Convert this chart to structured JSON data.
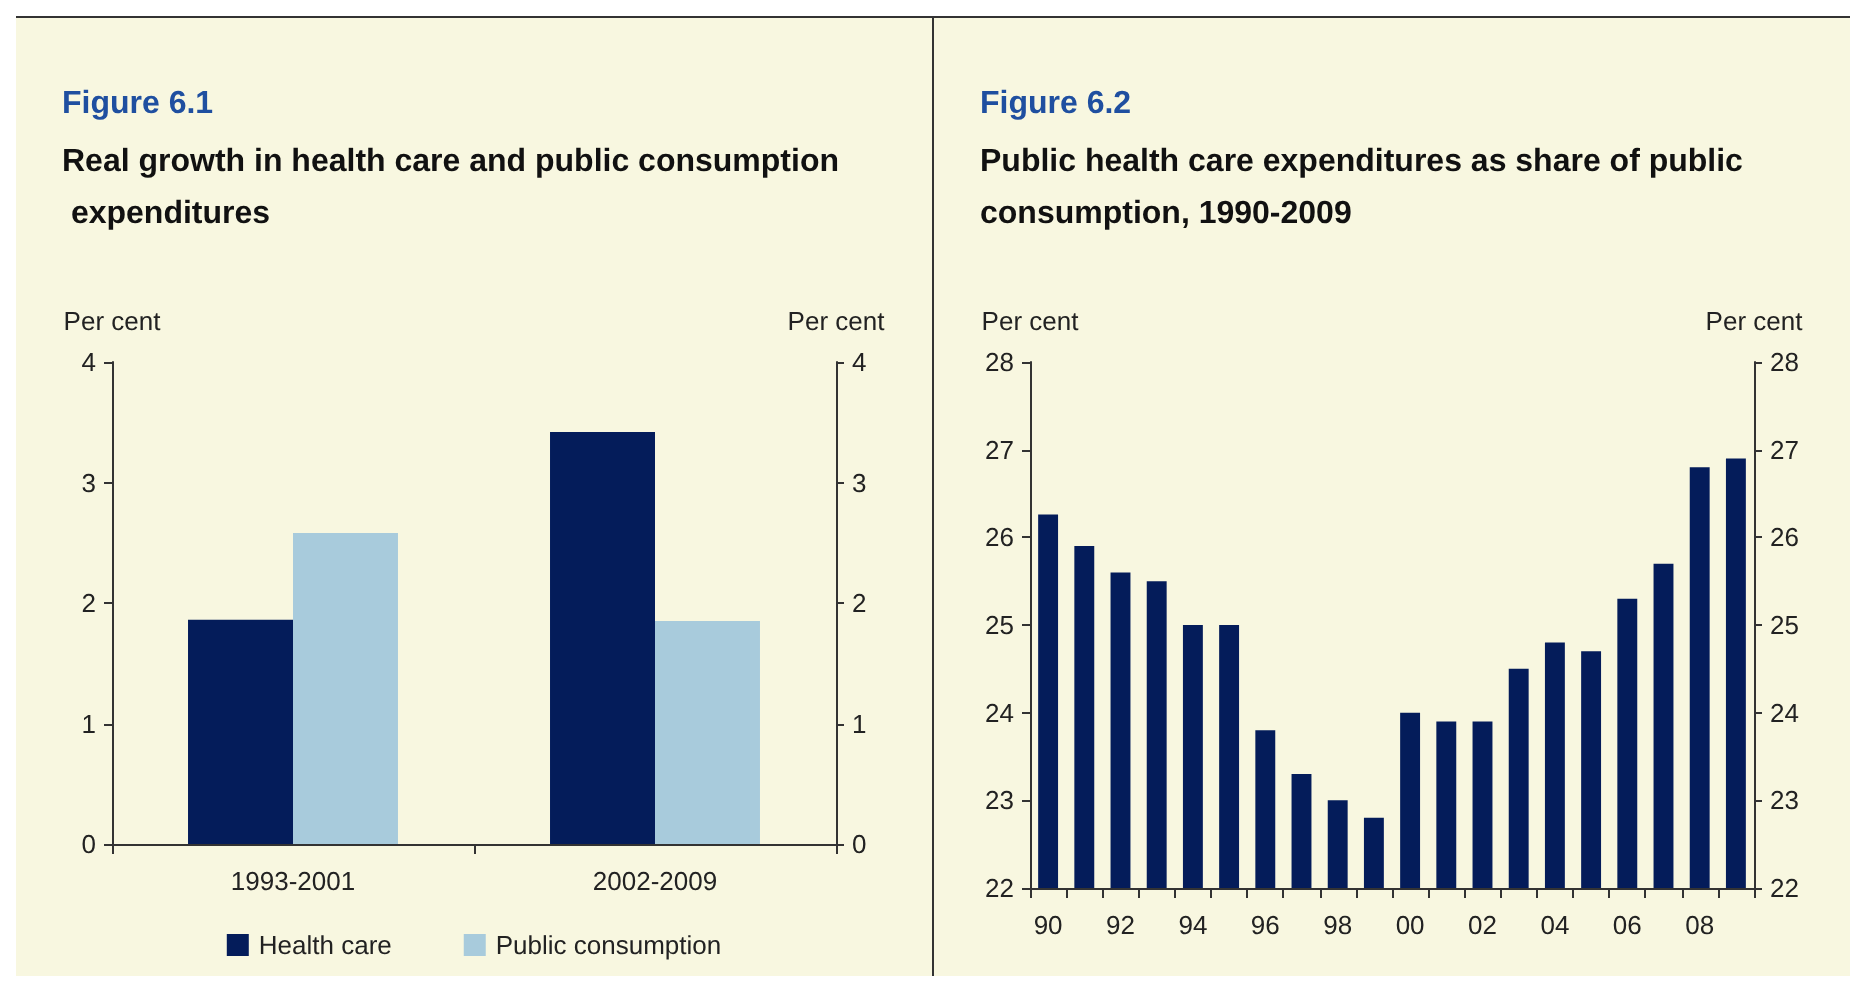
{
  "chart_data": [
    {
      "type": "bar",
      "title": "Figure 6.1",
      "subtitle": "Real growth in health care and public consumption expenditures",
      "ylabel": "Per cent",
      "y2label": "Per cent",
      "categories": [
        "1993-2001",
        "2002-2009"
      ],
      "series": [
        {
          "name": "Health care",
          "color": "#041c5a",
          "values": [
            1.86,
            3.42
          ]
        },
        {
          "name": "Public consumption",
          "color": "#a8cbdc",
          "values": [
            2.58,
            1.85
          ]
        }
      ],
      "ylim": [
        0,
        4
      ],
      "yticks": [
        0,
        1,
        2,
        3,
        4
      ],
      "y2lim": [
        0,
        4
      ],
      "y2ticks": [
        0,
        1,
        2,
        3,
        4
      ],
      "grid": false,
      "legend": "bottom"
    },
    {
      "type": "bar",
      "title": "Figure 6.2",
      "subtitle": "Public health care expenditures as share of public consumption, 1990-2009",
      "ylabel": "Per cent",
      "y2label": "Per cent",
      "categories": [
        "90",
        null,
        "92",
        null,
        "94",
        null,
        "96",
        null,
        "98",
        null,
        "00",
        null,
        "02",
        null,
        "04",
        null,
        "06",
        null,
        "08",
        null
      ],
      "values": [
        26.26,
        25.9,
        25.6,
        25.5,
        25.0,
        25.0,
        23.8,
        23.3,
        23.0,
        22.8,
        24.0,
        23.9,
        23.9,
        24.5,
        24.8,
        24.7,
        25.3,
        25.7,
        26.8,
        26.9
      ],
      "color": "#041c5a",
      "ylim": [
        22,
        28
      ],
      "yticks": [
        22,
        23,
        24,
        25,
        26,
        27,
        28
      ],
      "y2lim": [
        22,
        28
      ],
      "y2ticks": [
        22,
        23,
        24,
        25,
        26,
        27,
        28
      ],
      "grid": false,
      "legend": false
    }
  ]
}
